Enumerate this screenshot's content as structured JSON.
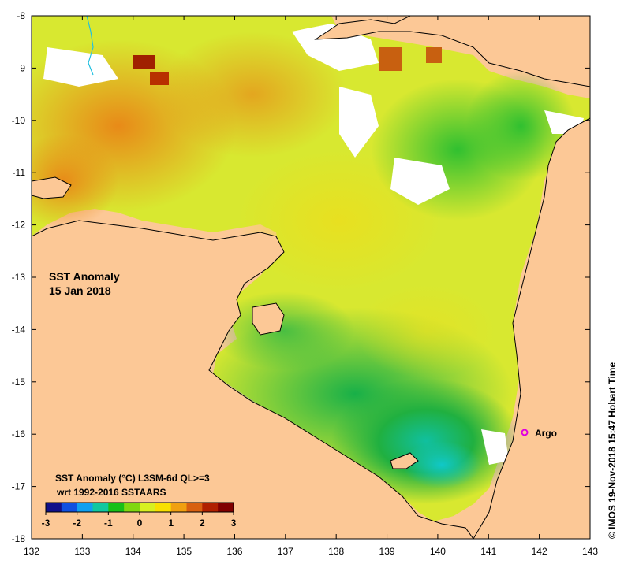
{
  "map": {
    "lon_ticks": [
      "132",
      "133",
      "134",
      "135",
      "136",
      "137",
      "138",
      "139",
      "140",
      "141",
      "142",
      "143"
    ],
    "lat_ticks": [
      "-8",
      "-9",
      "-10",
      "-11",
      "-12",
      "-13",
      "-14",
      "-15",
      "-16",
      "-17",
      "-18"
    ],
    "title_line1": "SST Anomaly",
    "title_line2": "15 Jan 2018",
    "marker_label": "Argo",
    "marker_color": "#e000e0",
    "land_color": "#fcc896",
    "side_text": "© IMOS 19-Nov-2018 15:47 Hobart Time"
  },
  "colorbar": {
    "title_line1": "SST Anomaly (°C) L3SM-6d QL>=3",
    "title_line2": "wrt 1992-2016 SSTAARS",
    "tick_labels": [
      "-3",
      "-2",
      "-1",
      "0",
      "1",
      "2",
      "3"
    ],
    "colors": [
      "#10108a",
      "#1050e0",
      "#10a0f0",
      "#10c8a0",
      "#18c018",
      "#80d810",
      "#d8f020",
      "#f8e000",
      "#f0a010",
      "#d86010",
      "#b02000",
      "#800000"
    ]
  }
}
